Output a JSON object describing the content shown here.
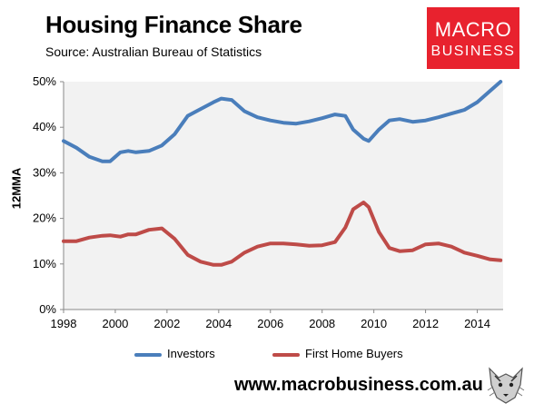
{
  "header": {
    "title": "Housing Finance Share",
    "subtitle": "Source: Australian Bureau of Statistics"
  },
  "logo": {
    "line1": "MACRO",
    "line2": "BUSINESS",
    "color": "#e8222e"
  },
  "footer": {
    "url": "www.macrobusiness.com.au"
  },
  "colors": {
    "investors": "#4a7ebb",
    "first_home_buyers": "#be4b48",
    "plot_bg": "#f2f2f2"
  },
  "chart_data": {
    "type": "line",
    "title": "Housing Finance Share",
    "subtitle": "Source: Australian Bureau of Statistics",
    "xlabel": "",
    "ylabel": "12MMA",
    "xlim": [
      1998,
      2015
    ],
    "ylim": [
      0,
      50
    ],
    "x_ticks": [
      "1998",
      "2000",
      "2002",
      "2004",
      "2006",
      "2008",
      "2010",
      "2012",
      "2014"
    ],
    "y_ticks": [
      "0%",
      "10%",
      "20%",
      "30%",
      "40%",
      "50%"
    ],
    "grid": false,
    "legend": "bottom",
    "series": [
      {
        "name": "Investors",
        "color": "#4a7ebb",
        "x": [
          1998,
          1998.5,
          1999,
          1999.5,
          1999.8,
          2000.2,
          2000.5,
          2000.8,
          2001.3,
          2001.8,
          2002.3,
          2002.8,
          2003.3,
          2003.8,
          2004.1,
          2004.5,
          2005,
          2005.5,
          2006,
          2006.5,
          2007,
          2007.5,
          2008,
          2008.5,
          2008.9,
          2009.2,
          2009.6,
          2009.8,
          2010.2,
          2010.6,
          2011,
          2011.5,
          2012,
          2012.5,
          2013,
          2013.5,
          2014,
          2014.5,
          2014.9
        ],
        "values": [
          37,
          35.5,
          33.5,
          32.5,
          32.5,
          34.5,
          34.8,
          34.5,
          34.8,
          36,
          38.5,
          42.5,
          44,
          45.5,
          46.3,
          46,
          43.5,
          42.2,
          41.5,
          41,
          40.8,
          41.3,
          42,
          42.8,
          42.5,
          39.5,
          37.5,
          37,
          39.5,
          41.5,
          41.8,
          41.2,
          41.5,
          42.2,
          43,
          43.8,
          45.5,
          48,
          50
        ]
      },
      {
        "name": "First Home Buyers",
        "color": "#be4b48",
        "x": [
          1998,
          1998.5,
          1999,
          1999.5,
          1999.8,
          2000.2,
          2000.5,
          2000.8,
          2001.3,
          2001.8,
          2002.3,
          2002.8,
          2003.3,
          2003.8,
          2004.1,
          2004.5,
          2005,
          2005.5,
          2006,
          2006.5,
          2007,
          2007.5,
          2008,
          2008.5,
          2008.9,
          2009.2,
          2009.6,
          2009.8,
          2010.2,
          2010.6,
          2011,
          2011.5,
          2012,
          2012.5,
          2013,
          2013.5,
          2014,
          2014.5,
          2014.9
        ],
        "values": [
          15,
          15,
          15.8,
          16.2,
          16.3,
          16,
          16.5,
          16.5,
          17.5,
          17.8,
          15.5,
          12,
          10.5,
          9.8,
          9.8,
          10.5,
          12.5,
          13.8,
          14.5,
          14.5,
          14.3,
          14,
          14.1,
          14.8,
          18,
          22,
          23.5,
          22.5,
          17,
          13.5,
          12.8,
          13,
          14.3,
          14.5,
          13.8,
          12.5,
          11.8,
          11,
          10.8
        ]
      }
    ]
  }
}
